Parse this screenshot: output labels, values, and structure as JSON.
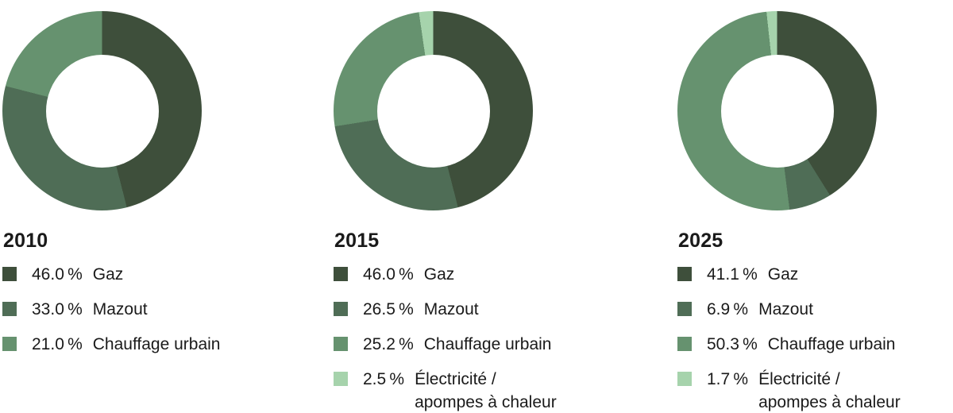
{
  "text_color": "#1a1a1a",
  "background_color": "#ffffff",
  "palette": {
    "gaz": "#3e4f3b",
    "mazout": "#4f6d56",
    "chauffage_urbain": "#66926f",
    "electricite_pompes": "#a6d3ac"
  },
  "chart_data": [
    {
      "type": "pie",
      "subtype": "donut",
      "year": "2010",
      "unit": "%",
      "start_angle_deg": 0,
      "direction": "clockwise",
      "hole_ratio": 0.57,
      "legend_position": "below",
      "slices": [
        {
          "label": "Gaz",
          "value": 46.0,
          "color": "#3e4f3b"
        },
        {
          "label": "Mazout",
          "value": 33.0,
          "color": "#4f6d56"
        },
        {
          "label": "Chauffage urbain",
          "value": 21.0,
          "color": "#66926f"
        }
      ]
    },
    {
      "type": "pie",
      "subtype": "donut",
      "year": "2015",
      "unit": "%",
      "start_angle_deg": 0,
      "direction": "clockwise",
      "hole_ratio": 0.57,
      "legend_position": "below",
      "slices": [
        {
          "label": "Gaz",
          "value": 46.0,
          "color": "#3e4f3b"
        },
        {
          "label": "Mazout",
          "value": 26.5,
          "color": "#4f6d56"
        },
        {
          "label": "Chauffage urbain",
          "value": 25.2,
          "color": "#66926f"
        },
        {
          "label": "Électricité /\napompes à chaleur",
          "value": 2.5,
          "color": "#a6d3ac"
        }
      ]
    },
    {
      "type": "pie",
      "subtype": "donut",
      "year": "2025",
      "unit": "%",
      "start_angle_deg": 0,
      "direction": "clockwise",
      "hole_ratio": 0.57,
      "legend_position": "below",
      "slices": [
        {
          "label": "Gaz",
          "value": 41.1,
          "color": "#3e4f3b"
        },
        {
          "label": "Mazout",
          "value": 6.9,
          "color": "#4f6d56"
        },
        {
          "label": "Chauffage urbain",
          "value": 50.3,
          "color": "#66926f"
        },
        {
          "label": "Électricité /\napompes à chaleur",
          "value": 1.7,
          "color": "#a6d3ac"
        }
      ]
    }
  ]
}
